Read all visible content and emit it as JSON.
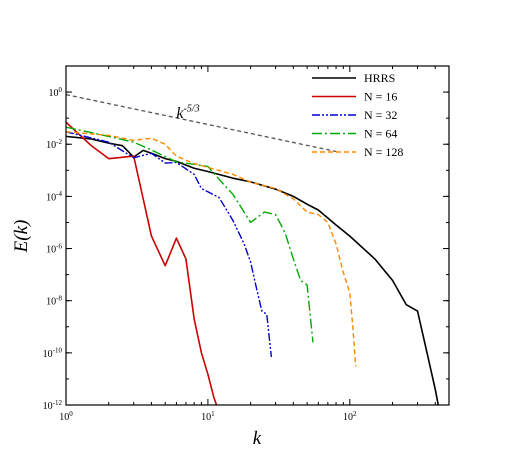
{
  "chart_data": {
    "type": "line",
    "xscale": "log",
    "yscale": "log",
    "xlim": [
      1,
      500
    ],
    "ylim": [
      1e-12,
      10
    ],
    "xlabel": "k",
    "ylabel": "E(k)",
    "xticks": [
      {
        "value": 1,
        "base": "10",
        "exp": "0"
      },
      {
        "value": 10,
        "base": "10",
        "exp": "1"
      },
      {
        "value": 100,
        "base": "10",
        "exp": "2"
      }
    ],
    "yticks": [
      {
        "value": 1,
        "base": "10",
        "exp": "0"
      },
      {
        "value": 0.01,
        "base": "10",
        "exp": "-2"
      },
      {
        "value": 0.0001,
        "base": "10",
        "exp": "-4"
      },
      {
        "value": 1e-06,
        "base": "10",
        "exp": "-6"
      },
      {
        "value": 1e-08,
        "base": "10",
        "exp": "-8"
      },
      {
        "value": 1e-10,
        "base": "10",
        "exp": "-10"
      },
      {
        "value": 1e-12,
        "base": "10",
        "exp": "-12"
      }
    ],
    "legend_position": "top-right",
    "slope_annotation": {
      "base": "k",
      "exp": "-5/3",
      "at": [
        6,
        0.1
      ],
      "line": [
        [
          1,
          0.8
        ],
        [
          80,
          0.00528
        ]
      ],
      "color": "#555555"
    },
    "series": [
      {
        "name": "HRRS",
        "color": "#000000",
        "dash": "solid",
        "width": 1.6,
        "points": [
          [
            1,
            0.02
          ],
          [
            1.5,
            0.016
          ],
          [
            2,
            0.011
          ],
          [
            2.5,
            0.0088
          ],
          [
            3,
            0.0032
          ],
          [
            3.5,
            0.0058
          ],
          [
            4,
            0.0045
          ],
          [
            5,
            0.0028
          ],
          [
            6,
            0.0022
          ],
          [
            8,
            0.0012
          ],
          [
            10,
            0.0009
          ],
          [
            15,
            0.0005
          ],
          [
            20,
            0.00036
          ],
          [
            30,
            0.00019
          ],
          [
            40,
            0.0001
          ],
          [
            50,
            5e-05
          ],
          [
            60,
            3e-05
          ],
          [
            80,
            8e-06
          ],
          [
            100,
            3e-06
          ],
          [
            150,
            4e-07
          ],
          [
            200,
            6e-08
          ],
          [
            250,
            7e-09
          ],
          [
            300,
            4e-09
          ],
          [
            350,
            1e-10
          ],
          [
            400,
            4e-12
          ],
          [
            420,
            1e-12
          ]
        ]
      },
      {
        "name": "N = 16",
        "color": "#cc0000",
        "dash": "solid",
        "width": 1.6,
        "points": [
          [
            1,
            0.07
          ],
          [
            1.5,
            0.009
          ],
          [
            2,
            0.0028
          ],
          [
            3,
            0.0035
          ],
          [
            4,
            3e-06
          ],
          [
            5,
            2.2e-07
          ],
          [
            6,
            2.5e-06
          ],
          [
            7,
            4e-07
          ],
          [
            8,
            2e-09
          ],
          [
            9,
            1e-10
          ],
          [
            10,
            1.5e-11
          ],
          [
            11,
            2e-12
          ],
          [
            11.5,
            1e-12
          ]
        ]
      },
      {
        "name": "N = 32",
        "color": "#0000cc",
        "dash": "8 2 2 2 2 2",
        "width": 1.4,
        "points": [
          [
            1,
            0.03
          ],
          [
            2,
            0.012
          ],
          [
            3,
            0.003
          ],
          [
            4,
            0.0045
          ],
          [
            5,
            0.0019
          ],
          [
            6,
            0.002
          ],
          [
            8,
            0.0007
          ],
          [
            9,
            0.0002
          ],
          [
            10,
            0.00015
          ],
          [
            12,
            9e-05
          ],
          [
            15,
            1.2e-05
          ],
          [
            18,
            1.5e-06
          ],
          [
            20,
            3e-07
          ],
          [
            22,
            3e-08
          ],
          [
            24,
            4e-09
          ],
          [
            26,
            3e-09
          ],
          [
            28,
            7e-11
          ]
        ]
      },
      {
        "name": "N = 64",
        "color": "#00aa00",
        "dash": "10 3 2 3",
        "width": 1.4,
        "points": [
          [
            1,
            0.045
          ],
          [
            2,
            0.02
          ],
          [
            3,
            0.012
          ],
          [
            4,
            0.006
          ],
          [
            6,
            0.0021
          ],
          [
            8,
            0.0017
          ],
          [
            10,
            0.0014
          ],
          [
            12,
            0.00045
          ],
          [
            15,
            0.00012
          ],
          [
            20,
            1e-05
          ],
          [
            25,
            2.5e-05
          ],
          [
            30,
            2e-05
          ],
          [
            35,
            4e-06
          ],
          [
            40,
            4e-07
          ],
          [
            45,
            6e-08
          ],
          [
            50,
            4e-08
          ],
          [
            55,
            2.5e-10
          ]
        ]
      },
      {
        "name": "N = 128",
        "color": "#ff8800",
        "dash": "5 3",
        "width": 1.4,
        "points": [
          [
            1,
            0.03
          ],
          [
            2,
            0.022
          ],
          [
            3,
            0.014
          ],
          [
            4,
            0.017
          ],
          [
            5,
            0.01
          ],
          [
            6,
            0.0035
          ],
          [
            8,
            0.0018
          ],
          [
            10,
            0.0013
          ],
          [
            15,
            0.0007
          ],
          [
            20,
            0.00035
          ],
          [
            30,
            0.0002
          ],
          [
            40,
            8e-05
          ],
          [
            50,
            2.5e-05
          ],
          [
            60,
            2e-05
          ],
          [
            70,
            1e-05
          ],
          [
            80,
            1.5e-06
          ],
          [
            90,
            1.2e-07
          ],
          [
            100,
            2e-08
          ],
          [
            105,
            1e-09
          ],
          [
            110,
            3e-11
          ]
        ]
      }
    ]
  }
}
